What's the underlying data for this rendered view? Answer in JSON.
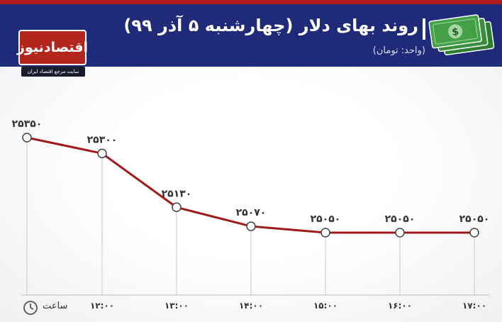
{
  "header": {
    "title": "روند بهای دلار (چهارشنبه ۵ آذر ۹۹)",
    "unit": "(واحد: تومان)",
    "brand_name": "اقتصادنیوز",
    "brand_tagline": "سایت مرجع اقتصاد ایران"
  },
  "colors": {
    "header_bg": "#1f2a78",
    "accent_red": "#b01b1b",
    "line": "#a11a1a"
  },
  "icons": [
    "money-icon",
    "clock-icon"
  ],
  "x_axis_label": "ساعت",
  "chart_data": {
    "type": "line",
    "title": "روند بهای دلار (چهارشنبه ۵ آذر ۹۹)",
    "ylabel": "(واحد: تومان)",
    "xlabel": "ساعت",
    "categories": [
      "",
      "۱۲:۰۰",
      "۱۳:۰۰",
      "۱۴:۰۰",
      "۱۵:۰۰",
      "۱۶:۰۰",
      "۱۷:۰۰"
    ],
    "series": [
      {
        "values": [
          25350,
          25300,
          25130,
          25070,
          25050,
          25050,
          25050
        ],
        "labels": [
          "۲۵۳۵۰",
          "۲۵۳۰۰",
          "۲۵۱۳۰",
          "۲۵۰۷۰",
          "۲۵۰۵۰",
          "۲۵۰۵۰",
          "۲۵۰۵۰"
        ]
      }
    ],
    "ylim": [
      25000,
      25400
    ],
    "grid": false,
    "legend": "none"
  }
}
